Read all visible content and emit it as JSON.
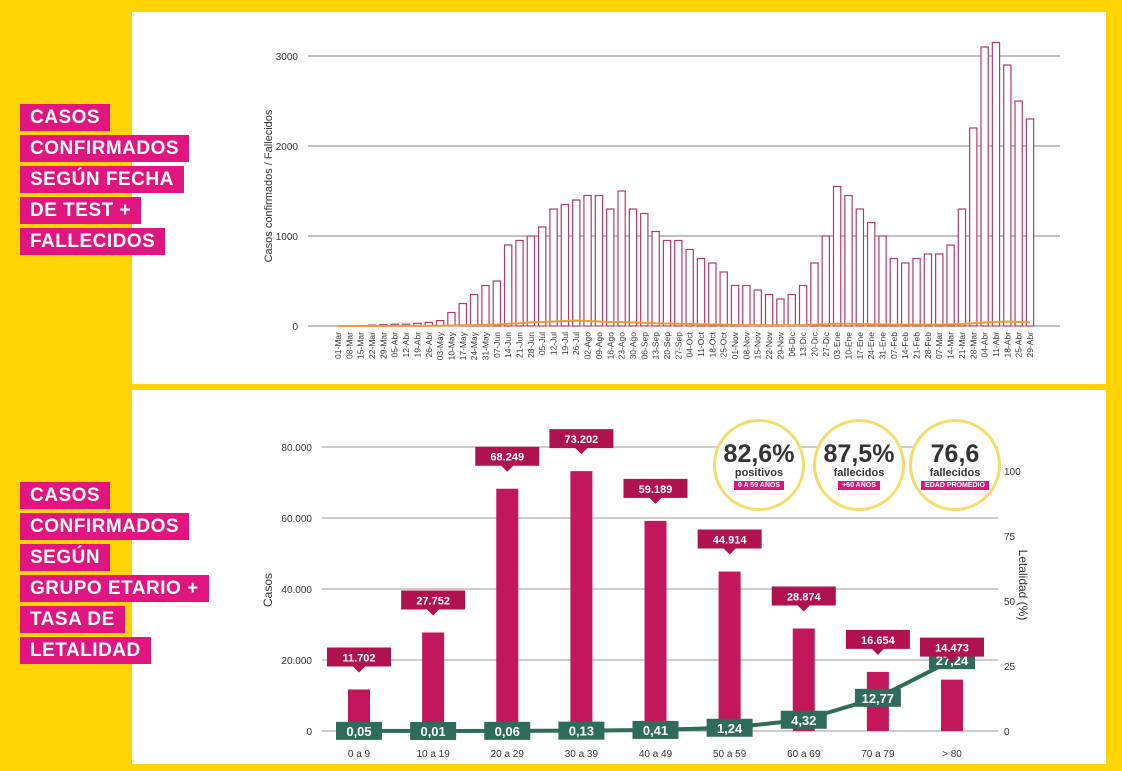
{
  "headings": {
    "top": [
      "CASOS",
      "CONFIRMADOS",
      "SEGÚN FECHA",
      "DE TEST +",
      "FALLECIDOS"
    ],
    "bottom": [
      "CASOS",
      "CONFIRMADOS",
      "SEGÚN",
      "GRUPO ETARIO +",
      "TASA DE",
      "LETALIDAD"
    ]
  },
  "stats": [
    {
      "value": "82,6%",
      "label": "positivos",
      "tag": "0 A 59 AÑOS"
    },
    {
      "value": "87,5%",
      "label": "fallecidos",
      "tag": "+60 AÑOS"
    },
    {
      "value": "76,6",
      "label": "fallecidos",
      "tag": "EDAD PROMEDIO"
    }
  ],
  "colors": {
    "bar": "#c2185b",
    "daily_bar": "#b03a6a",
    "deaths": "#f29a2e",
    "line": "#2e6b5a",
    "accent": "#e0157f",
    "background": "#ffd400"
  },
  "chart_data": [
    {
      "type": "bar",
      "ylabel": "Casos confirmados / Fallecidos",
      "ylim": [
        0,
        3000
      ],
      "yticks": [
        0,
        1000,
        2000,
        3000
      ],
      "grid": true,
      "x_tick_labels": [
        "01-Mar",
        "08-Mar",
        "15-Mar",
        "22-Mar",
        "29-Mar",
        "05-Abr",
        "12-Abr",
        "19-Abr",
        "26-Abr",
        "03-May",
        "10-May",
        "17-May",
        "24-May",
        "31-May",
        "07-Jun",
        "14-Jun",
        "21-Jun",
        "28-Jun",
        "05-Jul",
        "12-Jul",
        "19-Jul",
        "26-Jul",
        "02-Ago",
        "09-Ago",
        "16-Ago",
        "23-Ago",
        "30-Ago",
        "06-Sep",
        "13-Sep",
        "20-Sep",
        "27-Sep",
        "04-Oct",
        "11-Oct",
        "18-Oct",
        "25-Oct",
        "01-Nov",
        "08-Nov",
        "15-Nov",
        "22-Nov",
        "29-Nov",
        "06-Dic",
        "13-Dic",
        "20-Dic",
        "27-Dic",
        "03-Ene",
        "10-Ene",
        "17-Ene",
        "24-Ene",
        "31-Ene",
        "07-Feb",
        "14-Feb",
        "21-Feb",
        "28-Feb",
        "07-Mar",
        "14-Mar",
        "21-Mar",
        "28-Mar",
        "04-Abr",
        "11-Abr",
        "18-Abr",
        "25-Abr",
        "29-Abr"
      ],
      "series": [
        {
          "values": [
            0,
            2,
            5,
            10,
            15,
            20,
            20,
            30,
            40,
            60,
            150,
            250,
            350,
            450,
            500,
            900,
            950,
            1000,
            1100,
            1300,
            1350,
            1400,
            1450,
            1450,
            1300,
            1500,
            1300,
            1250,
            1050,
            950,
            950,
            850,
            750,
            700,
            600,
            450,
            450,
            400,
            350,
            300,
            350,
            450,
            700,
            1000,
            1550,
            1450,
            1300,
            1150,
            1000,
            750,
            700,
            750,
            800,
            800,
            900,
            1300,
            2200,
            3100,
            3150,
            2900,
            2500,
            2300
          ]
        },
        {
          "values": [
            0,
            0,
            0,
            0,
            0,
            1,
            1,
            1,
            2,
            3,
            5,
            8,
            10,
            12,
            15,
            25,
            30,
            40,
            45,
            50,
            55,
            60,
            55,
            50,
            45,
            45,
            40,
            35,
            30,
            28,
            25,
            22,
            20,
            18,
            15,
            12,
            10,
            10,
            8,
            8,
            8,
            10,
            15,
            20,
            25,
            25,
            22,
            20,
            18,
            15,
            15,
            15,
            15,
            15,
            18,
            22,
            30,
            40,
            45,
            50,
            45,
            40
          ]
        }
      ]
    },
    {
      "type": "bar",
      "categories": [
        "0 a 9",
        "10 a 19",
        "20 a 29",
        "30 a 39",
        "40 a 49",
        "50 a 59",
        "60 a 69",
        "70 a 79",
        "> 80"
      ],
      "ylabel": "Casos",
      "y2label": "Letalidad (%)",
      "ylim": [
        0,
        80000
      ],
      "yticks": [
        0,
        20000,
        40000,
        60000,
        80000
      ],
      "ytick_labels": [
        "0",
        "20.000",
        "40.000",
        "60.000",
        "80.000"
      ],
      "y2lim": [
        0,
        100
      ],
      "y2ticks": [
        0,
        25,
        50,
        75,
        100
      ],
      "grid": true,
      "series": [
        {
          "type": "bar",
          "values": [
            11702,
            27752,
            68249,
            73202,
            59189,
            44914,
            28874,
            16654,
            14473
          ],
          "labels": [
            "11.702",
            "27.752",
            "68.249",
            "73.202",
            "59.189",
            "44.914",
            "28.874",
            "16.654",
            "14.473"
          ]
        },
        {
          "type": "line",
          "values": [
            0.05,
            0.01,
            0.06,
            0.13,
            0.41,
            1.24,
            4.32,
            12.77,
            27.24
          ],
          "labels": [
            "0,05",
            "0,01",
            "0,06",
            "0,13",
            "0,41",
            "1,24",
            "4,32",
            "12,77",
            "27,24"
          ]
        }
      ]
    }
  ]
}
